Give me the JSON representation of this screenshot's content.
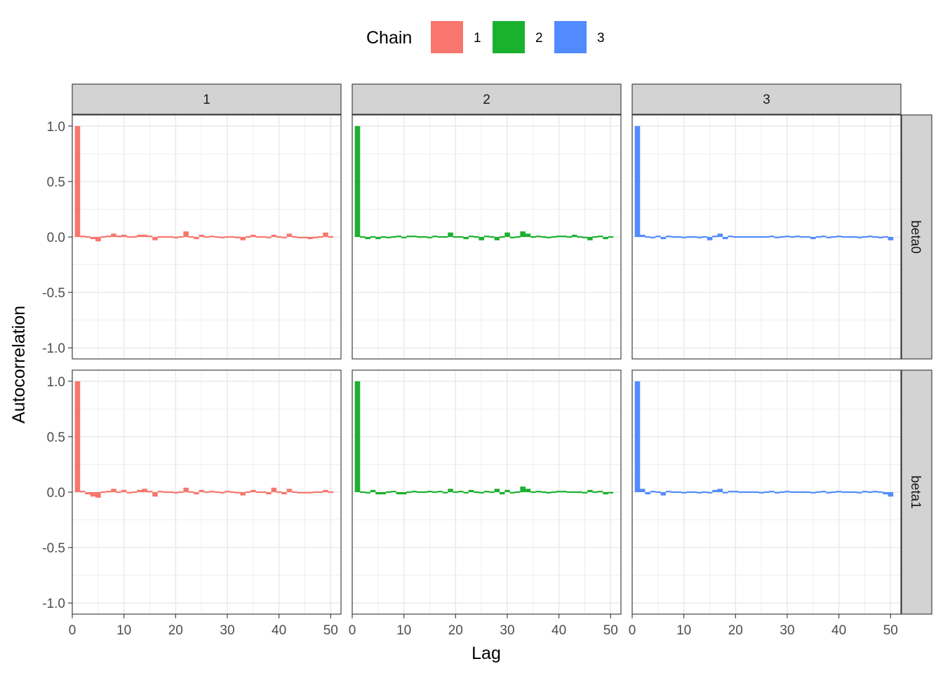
{
  "chart_data": {
    "type": "bar",
    "xlabel": "Lag",
    "ylabel": "Autocorrelation",
    "xlim": [
      0,
      52
    ],
    "ylim": [
      -1.1,
      1.1
    ],
    "x_ticks": [
      0,
      10,
      20,
      30,
      40,
      50
    ],
    "y_ticks": [
      -1.0,
      -0.5,
      0.0,
      0.5,
      1.0
    ],
    "y_tick_labels": [
      "-1.0",
      "-0.5",
      "0.0",
      "0.5",
      "1.0"
    ],
    "grid": true,
    "legend": {
      "title": "Chain",
      "position": "top",
      "entries": [
        {
          "label": "1",
          "color": "#F8766D"
        },
        {
          "label": "2",
          "color": "#1AB12E"
        },
        {
          "label": "3",
          "color": "#518BFF"
        }
      ]
    },
    "columns": [
      "1",
      "2",
      "3"
    ],
    "rows": [
      "beta0",
      "beta1"
    ],
    "lags": [
      1,
      2,
      3,
      4,
      5,
      6,
      7,
      8,
      9,
      10,
      11,
      12,
      13,
      14,
      15,
      16,
      17,
      18,
      19,
      20,
      21,
      22,
      23,
      24,
      25,
      26,
      27,
      28,
      29,
      30,
      31,
      32,
      33,
      34,
      35,
      36,
      37,
      38,
      39,
      40,
      41,
      42,
      43,
      44,
      45,
      46,
      47,
      48,
      49,
      50
    ],
    "panels": [
      {
        "row": "beta0",
        "col": "1",
        "color": "#F8766D",
        "values": [
          1.0,
          0.01,
          0.0,
          -0.02,
          -0.04,
          0.0,
          0.01,
          0.03,
          0.01,
          0.02,
          0.0,
          0.0,
          0.02,
          0.02,
          0.01,
          -0.03,
          0.0,
          0.0,
          0.0,
          -0.01,
          0.0,
          0.05,
          0.0,
          -0.02,
          0.02,
          0.0,
          0.01,
          0.0,
          -0.01,
          0.0,
          0.0,
          -0.01,
          -0.03,
          0.0,
          0.02,
          0.0,
          0.0,
          -0.01,
          0.02,
          0.0,
          -0.01,
          0.03,
          0.0,
          -0.01,
          -0.01,
          -0.02,
          -0.01,
          0.0,
          0.04,
          0.0
        ]
      },
      {
        "row": "beta0",
        "col": "2",
        "color": "#1AB12E",
        "values": [
          1.0,
          0.0,
          -0.02,
          0.0,
          -0.02,
          0.0,
          -0.01,
          0.0,
          0.01,
          -0.01,
          0.01,
          0.01,
          0.0,
          0.0,
          -0.01,
          0.01,
          0.0,
          0.0,
          0.04,
          0.0,
          0.0,
          -0.02,
          0.01,
          0.0,
          -0.03,
          0.01,
          0.0,
          -0.03,
          0.0,
          0.04,
          -0.01,
          0.0,
          0.05,
          0.03,
          0.0,
          0.01,
          0.0,
          -0.01,
          0.0,
          0.01,
          0.01,
          0.0,
          0.02,
          0.0,
          -0.01,
          -0.03,
          0.0,
          0.01,
          -0.02,
          0.0
        ]
      },
      {
        "row": "beta0",
        "col": "3",
        "color": "#518BFF",
        "values": [
          1.0,
          0.02,
          0.0,
          -0.01,
          0.01,
          -0.02,
          0.01,
          0.0,
          0.0,
          -0.01,
          0.0,
          0.0,
          -0.01,
          0.0,
          -0.03,
          0.01,
          0.03,
          -0.02,
          0.01,
          0.0,
          0.0,
          0.0,
          0.0,
          0.0,
          0.0,
          0.0,
          0.01,
          -0.01,
          0.0,
          0.01,
          0.0,
          0.01,
          0.0,
          0.0,
          -0.02,
          0.0,
          0.01,
          -0.01,
          0.0,
          0.01,
          0.0,
          0.0,
          0.0,
          -0.01,
          0.0,
          0.01,
          0.0,
          -0.01,
          0.0,
          -0.03
        ]
      },
      {
        "row": "beta1",
        "col": "1",
        "color": "#F8766D",
        "values": [
          1.0,
          0.01,
          -0.02,
          -0.04,
          -0.05,
          0.0,
          0.01,
          0.03,
          0.0,
          0.02,
          -0.01,
          0.0,
          0.02,
          0.03,
          0.01,
          -0.04,
          0.01,
          0.0,
          0.0,
          -0.01,
          0.0,
          0.04,
          0.0,
          -0.02,
          0.02,
          0.0,
          0.01,
          0.0,
          -0.01,
          0.01,
          0.0,
          -0.01,
          -0.03,
          0.0,
          0.02,
          0.0,
          0.0,
          -0.02,
          0.04,
          0.0,
          -0.02,
          0.03,
          0.0,
          -0.01,
          -0.01,
          -0.01,
          0.0,
          0.0,
          0.02,
          0.0
        ]
      },
      {
        "row": "beta1",
        "col": "2",
        "color": "#1AB12E",
        "values": [
          1.0,
          0.0,
          -0.01,
          0.02,
          -0.02,
          -0.02,
          0.0,
          0.01,
          -0.02,
          -0.02,
          0.0,
          0.01,
          0.0,
          0.0,
          0.01,
          0.0,
          0.01,
          -0.01,
          0.03,
          0.0,
          0.01,
          -0.01,
          0.02,
          0.0,
          -0.01,
          0.01,
          0.0,
          0.03,
          -0.02,
          0.02,
          -0.01,
          0.0,
          0.05,
          0.03,
          0.0,
          0.01,
          0.0,
          -0.01,
          0.0,
          0.01,
          0.01,
          0.0,
          0.0,
          0.0,
          -0.01,
          0.02,
          0.0,
          0.01,
          -0.02,
          -0.01
        ]
      },
      {
        "row": "beta1",
        "col": "3",
        "color": "#518BFF",
        "values": [
          1.0,
          0.03,
          -0.02,
          0.01,
          0.0,
          -0.03,
          0.01,
          0.0,
          0.0,
          -0.01,
          0.0,
          0.0,
          -0.01,
          0.0,
          -0.01,
          0.02,
          0.03,
          -0.01,
          0.01,
          0.01,
          0.0,
          0.0,
          0.0,
          0.0,
          -0.01,
          0.0,
          0.01,
          -0.01,
          0.0,
          0.01,
          0.0,
          0.0,
          0.0,
          0.0,
          -0.01,
          0.0,
          0.01,
          -0.01,
          0.0,
          0.01,
          0.0,
          0.0,
          0.0,
          -0.01,
          0.01,
          0.0,
          0.01,
          0.0,
          -0.02,
          -0.04
        ]
      }
    ]
  }
}
